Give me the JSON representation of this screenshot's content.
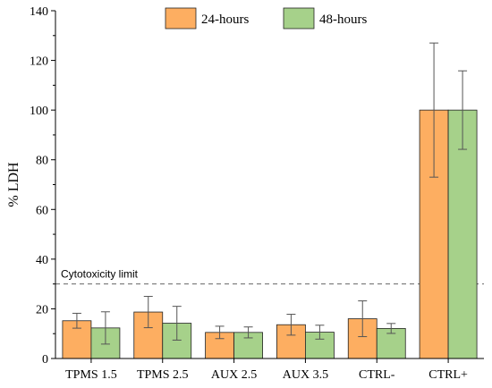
{
  "chart_data": {
    "type": "bar",
    "categories": [
      "TPMS 1.5",
      "TPMS 2.5",
      "AUX 2.5",
      "AUX 3.5",
      "CTRL-",
      "CTRL+"
    ],
    "series": [
      {
        "name": "24-hours",
        "color": "#fdae61",
        "values": [
          15.2,
          18.7,
          10.5,
          13.6,
          16.0,
          100.0
        ],
        "errors": [
          3.0,
          6.3,
          2.5,
          4.2,
          7.2,
          27.0
        ]
      },
      {
        "name": "48-hours",
        "color": "#a6d18a",
        "values": [
          12.3,
          14.2,
          10.5,
          10.6,
          12.1,
          100.0
        ],
        "errors": [
          6.5,
          6.8,
          2.2,
          2.8,
          2.0,
          15.8
        ]
      }
    ],
    "xlabel": "",
    "ylabel": "% LDH",
    "ylim": [
      0,
      140
    ],
    "yticks": [
      0,
      20,
      40,
      60,
      80,
      100,
      120,
      140
    ],
    "grid": false,
    "legend_position": "top-right",
    "reference_line": {
      "value": 30,
      "label": "Cytotoxicity limit",
      "style": "dashed"
    }
  }
}
